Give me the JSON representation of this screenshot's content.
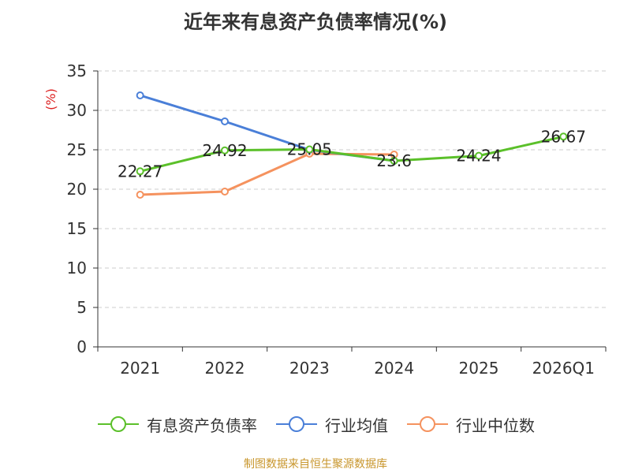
{
  "title": "近年来有息资产负债率情况(%)",
  "source": "制图数据来自恒生聚源数据库",
  "chart_data": {
    "type": "line",
    "title": "近年来有息资产负债率情况(%)",
    "ylabel": "(%)",
    "xlabel": "",
    "categories": [
      "2021",
      "2022",
      "2023",
      "2024",
      "2025",
      "2026Q1"
    ],
    "ylim": [
      0,
      35
    ],
    "yticks": [
      0,
      5,
      10,
      15,
      20,
      25,
      30,
      35
    ],
    "grid": true,
    "legend_position": "bottom",
    "series": [
      {
        "name": "有息资产负债率",
        "color": "#5bc02a",
        "values": [
          22.27,
          24.92,
          25.05,
          23.6,
          24.24,
          26.67
        ],
        "labels": [
          "22.27",
          "24.92",
          "25.05",
          "23.6",
          "24.24",
          "26.67"
        ]
      },
      {
        "name": "行业均值",
        "color": "#4a7fd8",
        "values": [
          31.9,
          28.6,
          25.0,
          23.6,
          null,
          null
        ]
      },
      {
        "name": "行业中位数",
        "color": "#f5925e",
        "values": [
          19.3,
          19.7,
          24.5,
          24.4,
          null,
          null
        ]
      }
    ]
  }
}
